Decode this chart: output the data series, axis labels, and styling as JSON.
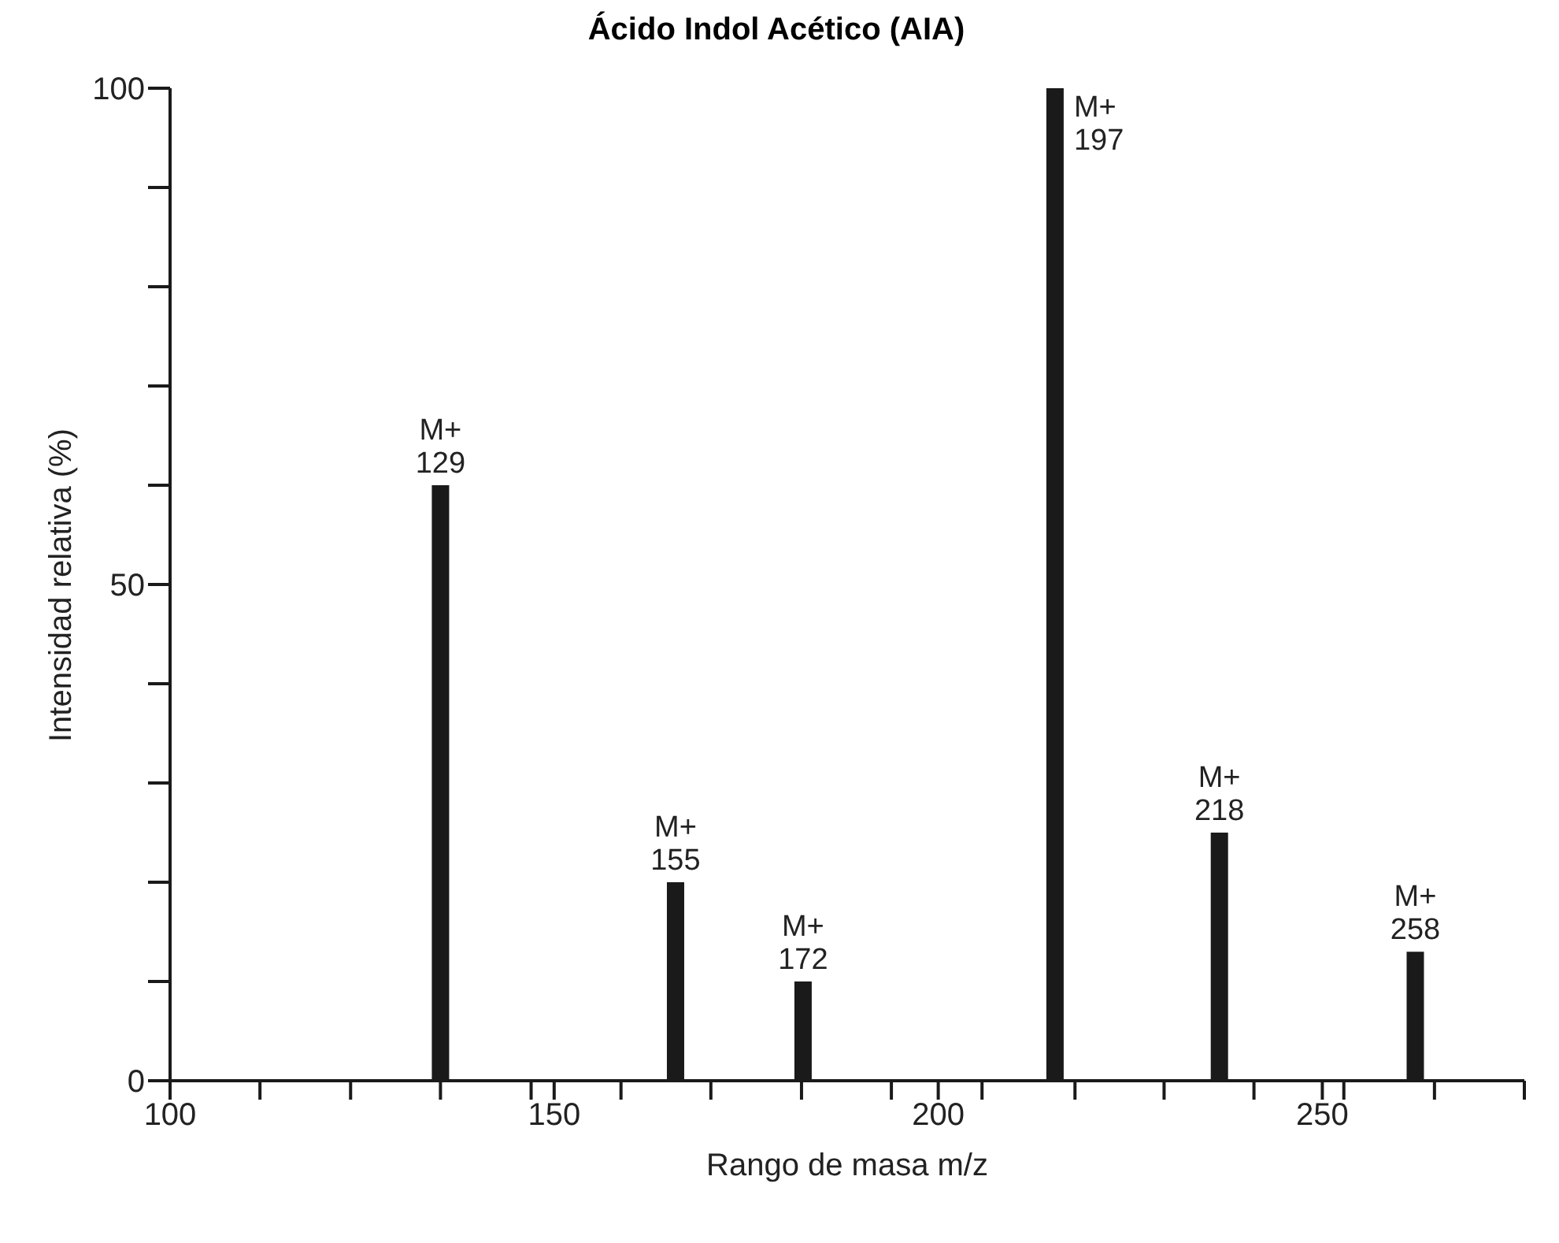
{
  "chart_data": {
    "type": "bar",
    "title": "Ácido Indol Acético (AIA)",
    "xlabel": "Rango de masa m/z",
    "ylabel": "Intensidad relativa (%)",
    "x": [
      135.2,
      165.8,
      182.4,
      215.2,
      236.6,
      262.1
    ],
    "values": [
      60,
      20,
      10,
      100,
      25,
      13
    ],
    "color": "#1a1a1a",
    "xlim": [
      100,
      276.3
    ],
    "xticks": [
      100,
      {
        "value": 111.7,
        "label": null
      },
      {
        "value": 123.5,
        "label": null
      },
      {
        "value": 135.2,
        "label": null
      },
      {
        "value": 147,
        "label": null
      },
      150,
      {
        "value": 158.7,
        "label": null
      },
      {
        "value": 170.4,
        "label": null
      },
      {
        "value": 182.2,
        "label": null
      },
      {
        "value": 193.9,
        "label": null
      },
      200,
      {
        "value": 205.7,
        "label": null
      },
      {
        "value": 217.8,
        "label": null
      },
      {
        "value": 229.4,
        "label": null
      },
      {
        "value": 241.1,
        "label": null
      },
      250,
      {
        "value": 252.8,
        "label": null
      },
      {
        "value": 264.6,
        "label": null
      },
      {
        "value": 276.3,
        "label": null
      }
    ],
    "ylim": [
      0,
      100
    ],
    "yticks": [
      0,
      {
        "value": 10,
        "label": null
      },
      {
        "value": 20,
        "label": null
      },
      {
        "value": 30,
        "label": null
      },
      {
        "value": 40,
        "label": null
      },
      50,
      {
        "value": 60,
        "label": null
      },
      {
        "value": 70,
        "label": null
      },
      {
        "value": 80,
        "label": null
      },
      {
        "value": 90,
        "label": null
      },
      100
    ],
    "grid": false,
    "legend": false,
    "annotations": [
      {
        "text": "M+\n129",
        "x": 135.2,
        "y": 60
      },
      {
        "text": "M+\n155",
        "x": 165.8,
        "y": 20
      },
      {
        "text": "M+\n172",
        "x": 182.4,
        "y": 10
      },
      {
        "text": "M+\n197",
        "x": 215.2,
        "y": 100
      },
      {
        "text": "M+\n218",
        "x": 236.6,
        "y": 25
      },
      {
        "text": "M+\n258",
        "x": 262.1,
        "y": 13
      }
    ]
  }
}
